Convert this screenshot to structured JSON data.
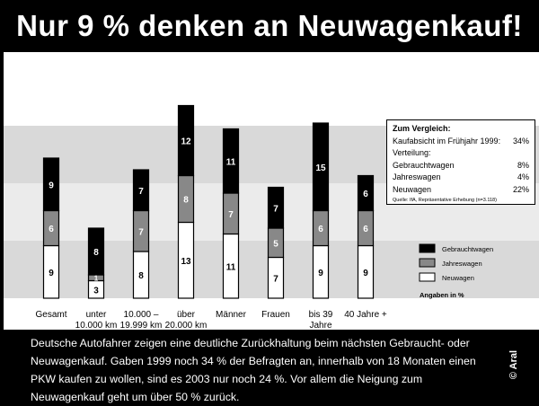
{
  "title": "Nur 9 % denken an Neuwagenkauf!",
  "chart_data": {
    "type": "bar",
    "stacked": true,
    "categories": [
      "Gesamt",
      "unter 10.000 km",
      "10.000 – 19.999 km",
      "über 20.000 km",
      "Männer",
      "Frauen",
      "bis 39 Jahre",
      "40 Jahre +"
    ],
    "category_lines": [
      [
        "Gesamt"
      ],
      [
        "unter",
        "10.000 km"
      ],
      [
        "10.000 –",
        "19.999 km"
      ],
      [
        "über",
        "20.000 km"
      ],
      [
        "Männer"
      ],
      [
        "Frauen"
      ],
      [
        "bis 39",
        "Jahre"
      ],
      [
        "40 Jahre +"
      ]
    ],
    "series": [
      {
        "name": "Neuwagen",
        "color": "#ffffff",
        "label_color": "#000000",
        "values": [
          9,
          3,
          8,
          13,
          11,
          7,
          9,
          9
        ]
      },
      {
        "name": "Jahreswagen",
        "color": "#888888",
        "label_color": "#ffffff",
        "values": [
          6,
          1,
          7,
          8,
          7,
          5,
          6,
          6
        ]
      },
      {
        "name": "Gebrauchtwagen",
        "color": "#000000",
        "label_color": "#ffffff",
        "values": [
          9,
          8,
          7,
          12,
          11,
          7,
          15,
          6
        ]
      }
    ],
    "legend_order": [
      "Gebrauchtwagen",
      "Jahreswagen",
      "Neuwagen"
    ],
    "legend_position": "right",
    "unit_note": "Angaben in %",
    "ylim": [
      0,
      36
    ],
    "grid": false
  },
  "infobox": {
    "heading": "Zum Vergleich:",
    "line1_label": "Kaufabsicht im Frühjahr 1999:",
    "line1_value": "34%",
    "subheading": "Verteilung:",
    "rows": [
      {
        "label": "Gebrauchtwagen",
        "value": "8%"
      },
      {
        "label": "Jahreswagen",
        "value": "4%"
      },
      {
        "label": "Neuwagen",
        "value": "22%"
      }
    ],
    "source": "Quelle: IfA, Repräsentative Erhebung (n=3.118)"
  },
  "caption": "Deutsche Autofahrer zeigen eine deutliche Zurückhaltung beim nächsten Gebraucht- oder Neuwagenkauf. Gaben 1999 noch 34 % der Befragten an, innerhalb von 18 Monaten einen PKW kaufen zu wollen, sind es 2003 nur noch 24 %. Vor allem die Neigung zum Neuwagenkauf geht um über 50 % zurück.",
  "copyright": "© Aral"
}
